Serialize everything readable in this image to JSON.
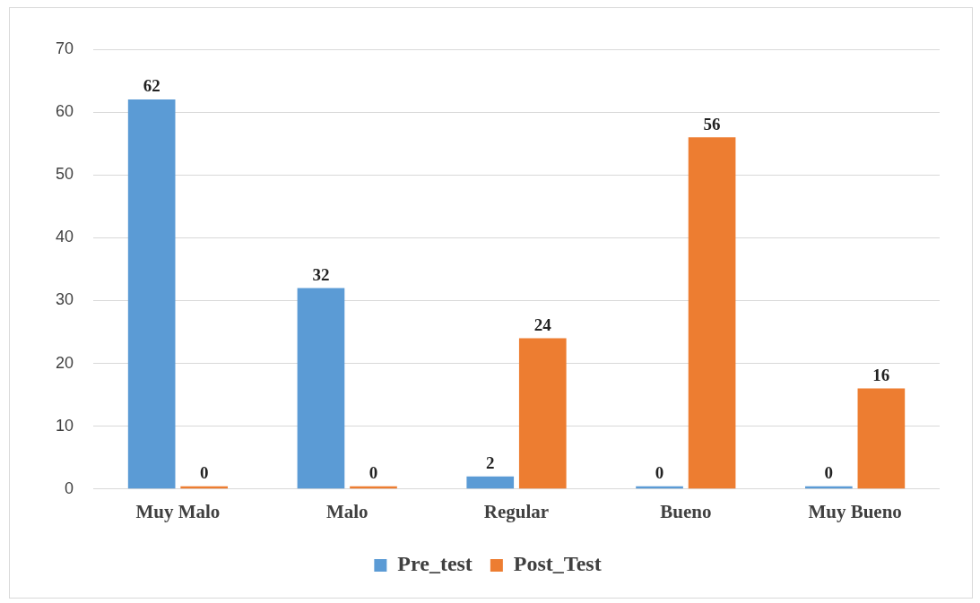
{
  "chart_data": {
    "type": "bar",
    "categories": [
      "Muy Malo",
      "Malo",
      "Regular",
      "Bueno",
      "Muy Bueno"
    ],
    "series": [
      {
        "name": "Pre_test",
        "color": "#5b9bd5",
        "values": [
          62,
          32,
          2,
          0,
          0
        ]
      },
      {
        "name": "Post_Test",
        "color": "#ed7d31",
        "values": [
          0,
          0,
          24,
          56,
          16
        ]
      }
    ],
    "ylim": [
      0,
      70
    ],
    "yticks": [
      0,
      10,
      20,
      30,
      40,
      50,
      60,
      70
    ],
    "grid": "y",
    "legend": "bottom",
    "data_labels": true
  }
}
